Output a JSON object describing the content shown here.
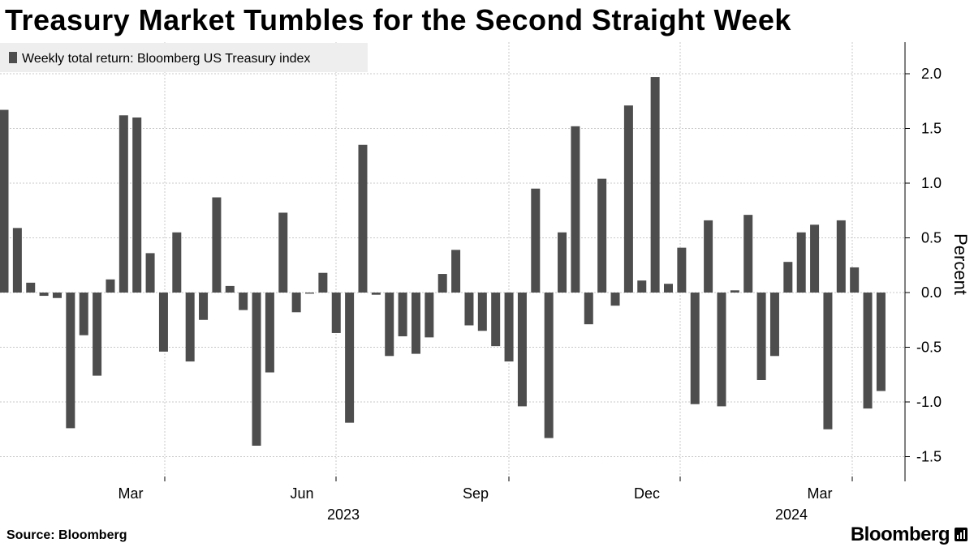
{
  "title": "Treasury Market Tumbles for the Second Straight Week",
  "source": "Source: Bloomberg",
  "logo": "Bloomberg",
  "colors": {
    "bar": "#4d4d4d",
    "grid": "#c8c8c8",
    "legend_bg": "#eeeeee"
  },
  "chart_data": {
    "type": "bar",
    "title": "Treasury Market Tumbles for the Second Straight Week",
    "legend": [
      "Weekly total return: Bloomberg US Treasury index"
    ],
    "ylabel": "Percent",
    "xlabel": "",
    "ylim": [
      -1.75,
      2.25
    ],
    "yticks": [
      2.0,
      1.5,
      1.0,
      0.5,
      0.0,
      -0.5,
      -1.0,
      -1.5
    ],
    "ytick_labels": [
      "2.0",
      "1.5",
      "1.0",
      "0.5",
      "0.0",
      "-0.5",
      "-1.0",
      "-1.5"
    ],
    "x_month_labels": [
      "Mar",
      "Jun",
      "Sep",
      "Dec",
      "Mar"
    ],
    "x_year_labels": [
      "2023",
      "2024"
    ],
    "series": [
      {
        "name": "Weekly total return: Bloomberg US Treasury index",
        "values": [
          1.67,
          0.59,
          0.09,
          -0.03,
          -0.05,
          -1.24,
          -0.39,
          -0.76,
          0.12,
          1.62,
          1.6,
          0.36,
          -0.54,
          0.55,
          -0.63,
          -0.25,
          0.87,
          0.06,
          -0.16,
          -1.4,
          -0.73,
          0.73,
          -0.18,
          -0.01,
          0.18,
          -0.37,
          -1.19,
          1.35,
          -0.02,
          -0.58,
          -0.4,
          -0.56,
          -0.41,
          0.17,
          0.39,
          -0.3,
          -0.35,
          -0.49,
          -0.63,
          -1.04,
          0.95,
          -1.33,
          0.55,
          1.52,
          -0.29,
          1.04,
          -0.12,
          1.71,
          0.11,
          1.97,
          0.08,
          0.41,
          -1.02,
          0.66,
          -1.04,
          0.02,
          0.71,
          -0.8,
          -0.58,
          0.28,
          0.55,
          0.62,
          -1.25,
          0.66,
          0.23,
          -1.06,
          -0.9
        ]
      }
    ]
  }
}
